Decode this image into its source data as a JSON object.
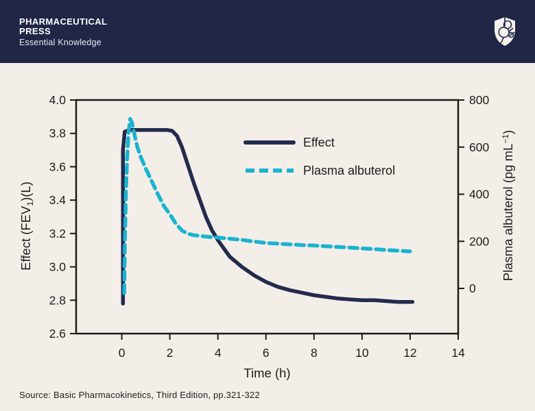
{
  "header": {
    "brand_line1": "PHARMACEUTICAL",
    "brand_line2": "PRESS",
    "tagline": "Essential Knowledge",
    "bg_color": "#212647",
    "logo_name": "pharmaceutical-press-shield"
  },
  "footer": {
    "source": "Source: Basic Pharmacokinetics, Third Edition, pp.321-322"
  },
  "colors": {
    "background": "#f4eee8",
    "axis": "#1a1a1a",
    "text": "#1d1d1d",
    "effect_navy": "#232c4e",
    "plasma_cyan": "#1ab3d1"
  },
  "chart_data": {
    "type": "line",
    "title": "",
    "xlabel": "Time (h)",
    "xlim": [
      -1.9,
      14
    ],
    "x_ticks": [
      0,
      2,
      4,
      6,
      8,
      10,
      12,
      14
    ],
    "grid": false,
    "legend_position": "upper-middle-inside",
    "left_axis": {
      "label_pre": "Effect (FEV",
      "label_sub": "1",
      "label_post": ")(L)",
      "lim": [
        2.6,
        4.0
      ],
      "tick_labels": [
        "4.0",
        "3.8",
        "3.6",
        "3.4",
        "3.2",
        "3.0",
        "2.8",
        "2.6"
      ]
    },
    "right_axis": {
      "label_pre": "Plasma albuterol (pg mL",
      "label_sup": "−1",
      "label_post": ")",
      "lim": [
        -192,
        800
      ],
      "ticks": [
        800,
        600,
        400,
        200,
        0
      ]
    },
    "series": [
      {
        "name": "Effect",
        "axis": "left",
        "color": "#232c4e",
        "style": "solid",
        "points": [
          [
            0.05,
            2.78
          ],
          [
            0.05,
            3.7
          ],
          [
            0.12,
            3.81
          ],
          [
            0.3,
            3.82
          ],
          [
            0.6,
            3.82
          ],
          [
            1.0,
            3.82
          ],
          [
            1.5,
            3.82
          ],
          [
            1.9,
            3.82
          ],
          [
            2.1,
            3.815
          ],
          [
            2.3,
            3.785
          ],
          [
            2.5,
            3.72
          ],
          [
            2.75,
            3.61
          ],
          [
            3.0,
            3.5
          ],
          [
            3.25,
            3.4
          ],
          [
            3.5,
            3.3
          ],
          [
            3.75,
            3.22
          ],
          [
            4.0,
            3.16
          ],
          [
            4.25,
            3.11
          ],
          [
            4.5,
            3.06
          ],
          [
            4.75,
            3.03
          ],
          [
            5.0,
            3.0
          ],
          [
            5.5,
            2.95
          ],
          [
            6.0,
            2.91
          ],
          [
            6.5,
            2.88
          ],
          [
            7.0,
            2.86
          ],
          [
            7.5,
            2.845
          ],
          [
            8.0,
            2.83
          ],
          [
            8.5,
            2.82
          ],
          [
            9.0,
            2.81
          ],
          [
            9.5,
            2.805
          ],
          [
            10.0,
            2.8
          ],
          [
            10.5,
            2.8
          ],
          [
            11.0,
            2.795
          ],
          [
            11.5,
            2.79
          ],
          [
            12.1,
            2.79
          ]
        ]
      },
      {
        "name": "Plasma albuterol",
        "axis": "right",
        "color": "#1ab3d1",
        "style": "dashed",
        "points": [
          [
            0.1,
            -20
          ],
          [
            0.12,
            150
          ],
          [
            0.17,
            400
          ],
          [
            0.22,
            550
          ],
          [
            0.28,
            660
          ],
          [
            0.35,
            720
          ],
          [
            0.42,
            705
          ],
          [
            0.5,
            665
          ],
          [
            0.65,
            600
          ],
          [
            0.8,
            555
          ],
          [
            1.0,
            508
          ],
          [
            1.25,
            455
          ],
          [
            1.5,
            400
          ],
          [
            1.75,
            350
          ],
          [
            2.0,
            315
          ],
          [
            2.25,
            275
          ],
          [
            2.5,
            246
          ],
          [
            2.75,
            232
          ],
          [
            3.0,
            226
          ],
          [
            3.5,
            220
          ],
          [
            4.0,
            216
          ],
          [
            4.5,
            211
          ],
          [
            5.0,
            206
          ],
          [
            5.5,
            199
          ],
          [
            6.0,
            193
          ],
          [
            6.5,
            190
          ],
          [
            7.0,
            187
          ],
          [
            7.5,
            184
          ],
          [
            8.0,
            182
          ],
          [
            8.5,
            179
          ],
          [
            9.0,
            176
          ],
          [
            9.5,
            173
          ],
          [
            10.0,
            170
          ],
          [
            10.5,
            167
          ],
          [
            11.0,
            163
          ],
          [
            11.5,
            160
          ],
          [
            12.0,
            157
          ]
        ]
      }
    ]
  }
}
